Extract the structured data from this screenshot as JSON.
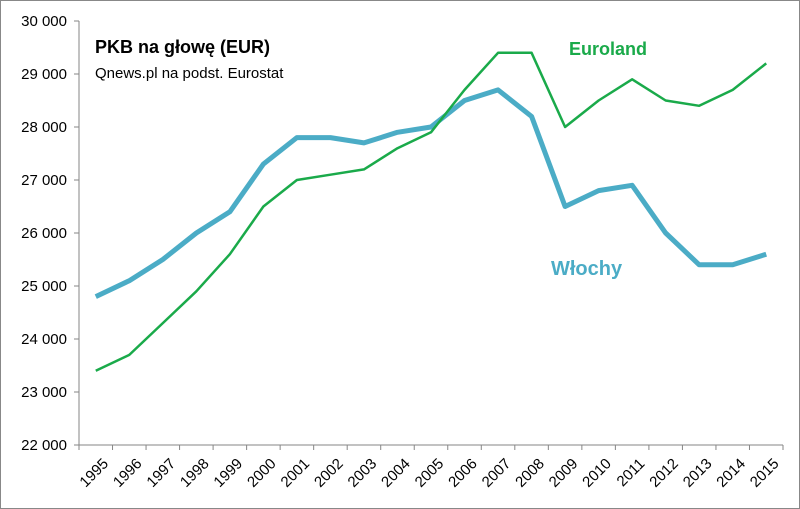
{
  "chart_data": {
    "type": "line",
    "title": "PKB na głowę (EUR)",
    "subtitle": "Qnews.pl na podst. Eurostat",
    "xlabel": "",
    "ylabel": "",
    "ylim": [
      22000,
      30000
    ],
    "yticks": [
      "22 000",
      "23 000",
      "24 000",
      "25 000",
      "26 000",
      "27 000",
      "28 000",
      "29 000",
      "30 000"
    ],
    "grid": false,
    "categories": [
      "1995",
      "1996",
      "1997",
      "1998",
      "1999",
      "2000",
      "2001",
      "2002",
      "2003",
      "2004",
      "2005",
      "2006",
      "2007",
      "2008",
      "2009",
      "2010",
      "2011",
      "2012",
      "2013",
      "2014",
      "2015"
    ],
    "series": [
      {
        "name": "Euroland",
        "color": "#1aaa4a",
        "values": [
          23400,
          23700,
          24300,
          24900,
          25600,
          26500,
          27000,
          27100,
          27200,
          27600,
          27900,
          28700,
          29400,
          29400,
          28000,
          28500,
          28900,
          28500,
          28400,
          28700,
          29200
        ]
      },
      {
        "name": "Włochy",
        "color": "#4bacc6",
        "values": [
          24800,
          25100,
          25500,
          26000,
          26400,
          27300,
          27800,
          27800,
          27700,
          27900,
          28000,
          28500,
          28700,
          28200,
          26500,
          26800,
          26900,
          26000,
          25400,
          25400,
          25600
        ]
      }
    ]
  }
}
